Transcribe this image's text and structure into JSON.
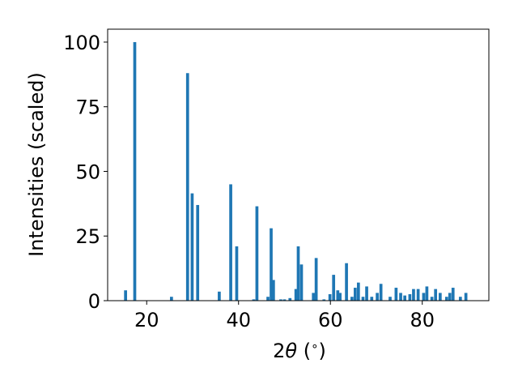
{
  "chart_data": {
    "type": "bar",
    "title": "",
    "xlabel": "2θ (°)",
    "xlabel_parts": {
      "prefix": "2",
      "symbol": "θ",
      "unit_open": " (",
      "unit": "∘",
      "unit_close": ")"
    },
    "ylabel": "Intensities (scaled)",
    "xlim": [
      11.5,
      94.5
    ],
    "ylim": [
      0,
      105
    ],
    "xticks": [
      20,
      40,
      60,
      80
    ],
    "yticks": [
      0,
      25,
      50,
      75,
      100
    ],
    "xtick_labels": [
      "20",
      "40",
      "60",
      "80"
    ],
    "ytick_labels": [
      "0",
      "25",
      "50",
      "75",
      "100"
    ],
    "bar_width": 0.65,
    "grid": false,
    "bar_color": "#1f77b4",
    "x": [
      15.4,
      17.4,
      25.4,
      28.9,
      29.9,
      31.1,
      35.8,
      38.3,
      39.6,
      43.3,
      44.0,
      46.4,
      47.1,
      47.6,
      49.2,
      50.0,
      51.2,
      52.5,
      53.0,
      53.7,
      56.3,
      56.9,
      58.6,
      59.9,
      60.7,
      61.6,
      62.1,
      63.5,
      64.7,
      65.4,
      66.1,
      67.1,
      67.9,
      69.0,
      70.2,
      71.0,
      73.0,
      74.3,
      75.3,
      76.2,
      77.3,
      78.1,
      79.1,
      80.3,
      81.0,
      82.1,
      82.9,
      83.9,
      85.3,
      86.0,
      86.7,
      88.3,
      89.5
    ],
    "values": [
      4.0,
      100.0,
      1.5,
      88.0,
      41.5,
      37.0,
      3.5,
      45.0,
      21.0,
      0.5,
      36.5,
      1.5,
      28.0,
      8.0,
      0.5,
      0.5,
      1.0,
      4.5,
      21.0,
      14.0,
      3.0,
      16.5,
      0.5,
      2.5,
      10.0,
      4.0,
      3.0,
      14.5,
      1.5,
      5.0,
      7.0,
      1.5,
      5.5,
      1.5,
      3.0,
      6.5,
      1.5,
      5.0,
      3.0,
      2.0,
      2.5,
      4.5,
      4.5,
      3.0,
      5.5,
      1.5,
      4.5,
      3.0,
      1.5,
      3.0,
      5.0,
      1.5,
      3.0
    ]
  }
}
